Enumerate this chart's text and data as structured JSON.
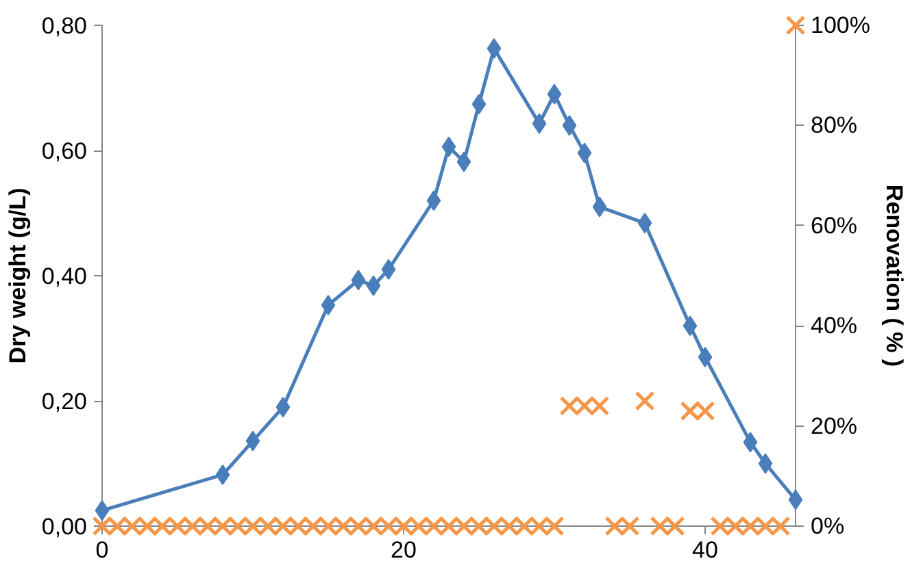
{
  "chart_data": {
    "type": "line",
    "ylabel": "Dry weight (g/L)",
    "y2label": "Renovation ( % )",
    "xlim": [
      0,
      46
    ],
    "xticks": [
      0,
      20,
      40
    ],
    "ylim": [
      0,
      0.8
    ],
    "yticks": [
      {
        "value": 0,
        "label": "0,00"
      },
      {
        "value": 0.2,
        "label": "0,20"
      },
      {
        "value": 0.4,
        "label": "0,40"
      },
      {
        "value": 0.6,
        "label": "0,60"
      },
      {
        "value": 0.8,
        "label": "0,80"
      }
    ],
    "y2lim": [
      0,
      100
    ],
    "y2ticks": [
      {
        "value": 0,
        "label": "0%"
      },
      {
        "value": 20,
        "label": "20%"
      },
      {
        "value": 40,
        "label": "40%"
      },
      {
        "value": 60,
        "label": "60%"
      },
      {
        "value": 80,
        "label": "80%"
      },
      {
        "value": 100,
        "label": "100%"
      }
    ],
    "grid": false,
    "series": [
      {
        "marker": "diamond",
        "color": "#4a7ebb",
        "x": [
          0,
          8,
          10,
          12,
          15,
          17,
          18,
          19,
          22,
          23,
          24,
          25,
          26,
          29,
          30,
          31,
          32,
          33,
          36,
          39,
          40,
          43,
          44,
          46
        ],
        "values": [
          0.025,
          0.082,
          0.136,
          0.19,
          0.353,
          0.393,
          0.384,
          0.41,
          0.52,
          0.606,
          0.582,
          0.674,
          0.763,
          0.643,
          0.69,
          0.64,
          0.596,
          0.51,
          0.484,
          0.32,
          0.27,
          0.134,
          0.1,
          0.042
        ]
      },
      {
        "type": "scatter",
        "marker": "cross",
        "color": "#f79646",
        "axis": "y2",
        "x": [
          0,
          1,
          2,
          3,
          4,
          5,
          6,
          7,
          8,
          9,
          10,
          11,
          12,
          13,
          14,
          15,
          16,
          17,
          18,
          19,
          20,
          21,
          22,
          23,
          24,
          25,
          26,
          27,
          28,
          29,
          30,
          31,
          32,
          33,
          34,
          35,
          36,
          37,
          38,
          39,
          40,
          41,
          42,
          43,
          44,
          45,
          46
        ],
        "values": [
          0,
          0,
          0,
          0,
          0,
          0,
          0,
          0,
          0,
          0,
          0,
          0,
          0,
          0,
          0,
          0,
          0,
          0,
          0,
          0,
          0,
          0,
          0,
          0,
          0,
          0,
          0,
          0,
          0,
          0,
          0,
          24,
          24,
          24,
          0,
          0,
          25,
          0,
          0,
          23,
          23,
          0,
          0,
          0,
          0,
          0,
          100
        ]
      }
    ]
  }
}
